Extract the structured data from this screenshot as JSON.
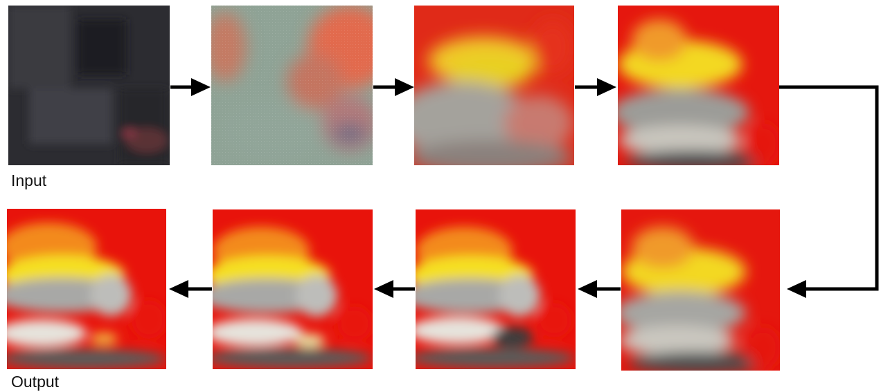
{
  "labels": {
    "input": "Input",
    "output": "Output"
  },
  "stages": [
    {
      "id": "input",
      "description_icon": "dark-night-scene-image"
    },
    {
      "id": "stage-2",
      "description_icon": "noisy-gray-red-image"
    },
    {
      "id": "stage-3",
      "description_icon": "yellow-red-gray-image"
    },
    {
      "id": "stage-4",
      "description_icon": "fire-building-image"
    },
    {
      "id": "stage-5",
      "description_icon": "fire-building-image"
    },
    {
      "id": "stage-6",
      "description_icon": "fire-building-image"
    },
    {
      "id": "stage-7",
      "description_icon": "fire-building-image"
    },
    {
      "id": "output",
      "description_icon": "fire-building-image"
    }
  ],
  "colors": {
    "arrow": "#000000",
    "fire_red": "#e4130d",
    "fire_yellow": "#f5e020",
    "smoke_gray": "#9a9a9a",
    "dark": "#2b2b30"
  }
}
